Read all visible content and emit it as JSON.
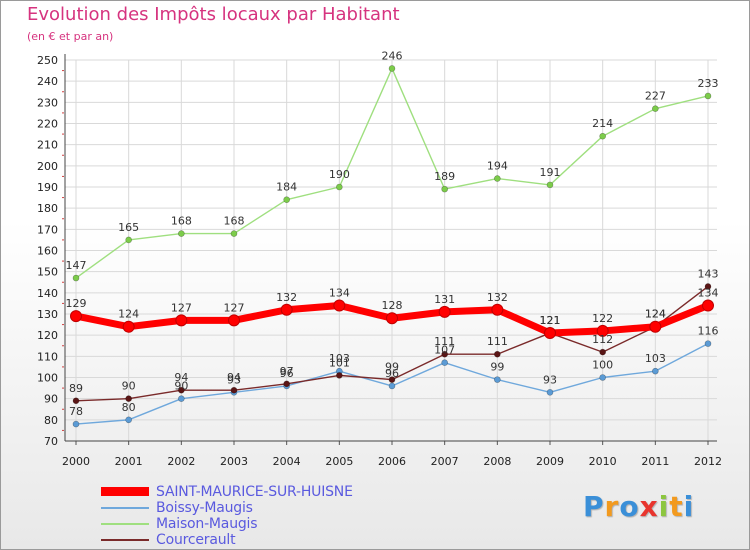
{
  "header": {
    "title": "Evolution des Impôts locaux par Habitant",
    "subtitle": "(en € et par an)"
  },
  "chart_data": {
    "type": "line",
    "title": "Evolution des Impôts locaux par Habitant",
    "subtitle": "(en € et par an)",
    "xlabel": "",
    "ylabel": "",
    "x": [
      "2000",
      "2001",
      "2002",
      "2003",
      "2004",
      "2005",
      "2006",
      "2007",
      "2008",
      "2009",
      "2010",
      "2011",
      "2012"
    ],
    "ylim": [
      70,
      250
    ],
    "yticks": [
      70,
      80,
      90,
      100,
      110,
      120,
      130,
      140,
      150,
      160,
      170,
      180,
      190,
      200,
      210,
      220,
      230,
      240,
      250
    ],
    "grid": true,
    "legend_position": "bottom-left",
    "series": [
      {
        "name": "SAINT-MAURICE-SUR-HUISNE",
        "color": "#ff0000",
        "style": "thick",
        "values": [
          129,
          124,
          127,
          127,
          132,
          134,
          128,
          131,
          132,
          121,
          122,
          124,
          134
        ]
      },
      {
        "name": "Boissy-Maugis",
        "color": "#6fa8dc",
        "marker": "#5b9bd5",
        "style": "thin",
        "values": [
          78,
          80,
          90,
          93,
          96,
          103,
          96,
          107,
          99,
          93,
          100,
          103,
          116
        ]
      },
      {
        "name": "Maison-Maugis",
        "color": "#9fdf7f",
        "marker": "#7ccc4a",
        "style": "thin",
        "values": [
          147,
          165,
          168,
          168,
          184,
          190,
          246,
          189,
          194,
          191,
          214,
          227,
          233
        ]
      },
      {
        "name": "Courcerault",
        "color": "#7a2a2a",
        "marker": "#5a1515",
        "style": "thin",
        "values": [
          89,
          90,
          94,
          94,
          97,
          101,
          99,
          111,
          111,
          121,
          112,
          124,
          143
        ]
      }
    ]
  },
  "brand": {
    "letters": [
      {
        "ch": "P",
        "color": "#3a8fd8"
      },
      {
        "ch": "r",
        "color": "#f29a1f"
      },
      {
        "ch": "o",
        "color": "#3a8fd8"
      },
      {
        "ch": "x",
        "color": "#e8352e"
      },
      {
        "ch": "i",
        "color": "#8cc63f"
      },
      {
        "ch": "t",
        "color": "#f29a1f"
      },
      {
        "ch": "i",
        "color": "#3a8fd8"
      }
    ]
  }
}
